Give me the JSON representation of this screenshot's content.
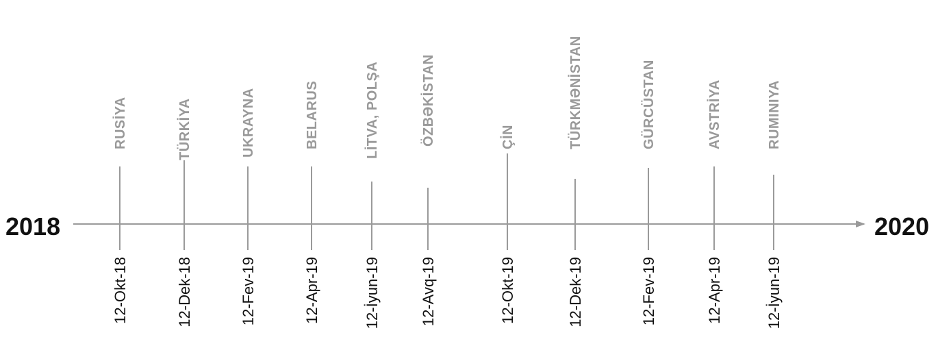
{
  "timeline": {
    "start_year": "2018",
    "end_year": "2020",
    "line_color": "#9a9a9a",
    "country_color": "#999999",
    "text_color": "#111111",
    "events": [
      {
        "country": "RUSİYA",
        "date": "12-Okt-18"
      },
      {
        "country": "TÜRKİYA",
        "date": "12-Dek-18"
      },
      {
        "country": "UKRAYNA",
        "date": "12-Fev-19"
      },
      {
        "country": "BELARUS",
        "date": "12-Apr-19"
      },
      {
        "country": "LİTVA, POLŞA",
        "date": "12-İyun-19"
      },
      {
        "country": "ÖZBƏKİSTAN",
        "date": "12-Avq-19"
      },
      {
        "country": "ÇİN",
        "date": "12-Okt-19"
      },
      {
        "country": "TÜRKMƏNİSTAN",
        "date": "12-Dek-19"
      },
      {
        "country": "GÜRCÜSTAN",
        "date": "12-Fev-19"
      },
      {
        "country": "AVSTRİYA",
        "date": "12-Apr-19"
      },
      {
        "country": "RUMINIYA",
        "date": "12-İyun-19"
      }
    ]
  }
}
